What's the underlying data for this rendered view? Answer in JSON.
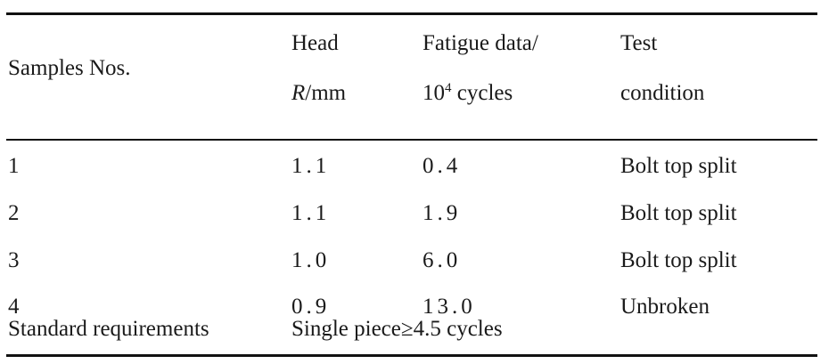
{
  "table": {
    "headers": {
      "samples": "Samples Nos.",
      "head_line1": "Head",
      "head_r": "R",
      "head_unit": "/mm",
      "fatigue_line1": "Fatigue data/",
      "fatigue_base": "10",
      "fatigue_exp": "4",
      "fatigue_unit": " cycles",
      "test_line1": "Test",
      "test_line2": "condition"
    },
    "rows": [
      {
        "sample": "1",
        "head_r": "1.1",
        "fatigue": "0.4",
        "condition": "Bolt top split"
      },
      {
        "sample": "2",
        "head_r": "1.1",
        "fatigue": "1.9",
        "condition": "Bolt top split"
      },
      {
        "sample": "3",
        "head_r": "1.0",
        "fatigue": "6.0",
        "condition": "Bolt top split"
      },
      {
        "sample": "4",
        "head_r": "0.9",
        "fatigue": "13.0",
        "condition": "Unbroken"
      }
    ],
    "footer": {
      "label": "Standard requirements",
      "value": "Single piece≥4.5 cycles"
    }
  }
}
